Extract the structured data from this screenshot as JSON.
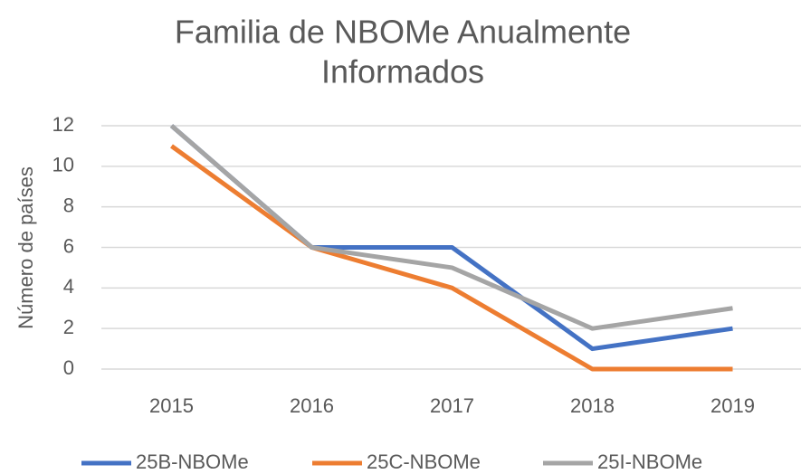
{
  "chart_data": {
    "type": "line",
    "title": [
      "Familia de NBOMe Anualmente",
      "Informados"
    ],
    "y_label": "Número de países",
    "categories": [
      "2015",
      "2016",
      "2017",
      "2018",
      "2019"
    ],
    "series": [
      {
        "name": "25B-NBOMe",
        "color": "#4472c4",
        "values": [
          12,
          6,
          6,
          1,
          2
        ]
      },
      {
        "name": "25C-NBOMe",
        "color": "#ed7d31",
        "values": [
          11,
          6,
          4,
          0,
          0
        ]
      },
      {
        "name": "25I-NBOMe",
        "color": "#a5a5a5",
        "values": [
          12,
          6,
          5,
          2,
          3
        ]
      }
    ],
    "ylim": [
      0,
      12
    ],
    "yticks": [
      0,
      2,
      4,
      6,
      8,
      10,
      12
    ],
    "grid": true,
    "legend": "bottom"
  }
}
